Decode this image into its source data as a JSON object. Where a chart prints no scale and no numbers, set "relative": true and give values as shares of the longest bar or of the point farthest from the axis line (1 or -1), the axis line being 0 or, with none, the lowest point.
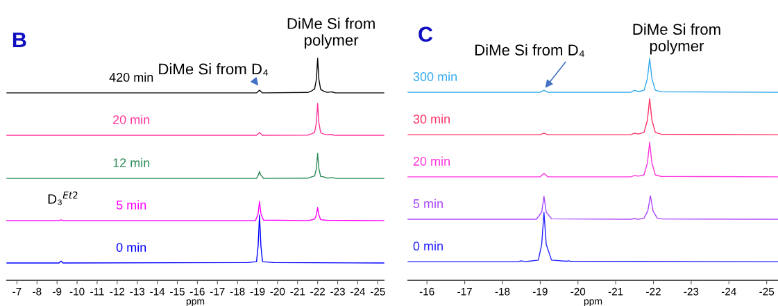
{
  "chart_data": [
    {
      "type": "line",
      "relative": true,
      "title": "B",
      "xlim": [
        -6.5,
        -25.3
      ],
      "xticks": [
        -7,
        -8,
        -9,
        -10,
        -11,
        -12,
        -13,
        -14,
        -15,
        -16,
        -17,
        -18,
        -19,
        -20,
        -21,
        -22,
        -23,
        -24,
        -25
      ],
      "xlabel": "ppm",
      "tick_labels": "x",
      "grid": false,
      "annotations": [
        {
          "text": "DiMe Si from D₄",
          "x": -19.1,
          "y": 0.87
        },
        {
          "text": "DiMe Si from\npolymer",
          "x": -22.0,
          "y": 1.0
        },
        {
          "text": "D₃$^{Et2}$",
          "x": -9.2,
          "y": 0.28
        }
      ],
      "series": [
        {
          "name": "420 min",
          "color": "#000000",
          "x": [
            -6.5,
            -18.95,
            -19.1,
            -19.25,
            -21.5,
            -21.7,
            -21.85,
            -21.94,
            -22.0,
            -22.06,
            -22.15,
            -22.3,
            -22.45,
            -22.7,
            -22.8,
            -22.9,
            -25.3
          ],
          "values": [
            0.844,
            0.844,
            0.856,
            0.844,
            0.846,
            0.853,
            0.863,
            0.906,
            1.0,
            0.906,
            0.86,
            0.852,
            0.847,
            0.849,
            0.846,
            0.844,
            0.844
          ]
        },
        {
          "name": "20 min",
          "color": "#ff3399",
          "x": [
            -6.5,
            -18.95,
            -19.1,
            -19.25,
            -21.5,
            -21.7,
            -21.85,
            -21.94,
            -22.0,
            -22.06,
            -22.15,
            -22.3,
            -22.45,
            -22.7,
            -22.8,
            -22.9,
            -25.3
          ],
          "values": [
            0.653,
            0.653,
            0.666,
            0.653,
            0.654,
            0.66,
            0.667,
            0.711,
            0.797,
            0.711,
            0.665,
            0.659,
            0.656,
            0.657,
            0.654,
            0.653,
            0.653
          ]
        },
        {
          "name": "12 min",
          "color": "#2e8b57",
          "x": [
            -6.5,
            -18.95,
            -19.05,
            -19.1,
            -19.15,
            -19.3,
            -21.5,
            -21.7,
            -21.85,
            -21.94,
            -22.0,
            -22.06,
            -22.15,
            -22.3,
            -22.45,
            -22.8,
            -22.9,
            -25.3
          ],
          "values": [
            0.459,
            0.459,
            0.476,
            0.491,
            0.476,
            0.459,
            0.46,
            0.466,
            0.47,
            0.504,
            0.572,
            0.504,
            0.468,
            0.466,
            0.461,
            0.462,
            0.459,
            0.459
          ]
        },
        {
          "name": "5 min",
          "color": "#ff00ff",
          "x": [
            -6.5,
            -9.1,
            -9.2,
            -9.3,
            -18.9,
            -19.03,
            -19.1,
            -19.17,
            -19.3,
            -21.5,
            -21.7,
            -21.85,
            -21.94,
            -22.0,
            -22.06,
            -22.15,
            -22.3,
            -22.5,
            -25.3
          ],
          "values": [
            0.269,
            0.269,
            0.272,
            0.269,
            0.269,
            0.3,
            0.356,
            0.3,
            0.271,
            0.269,
            0.272,
            0.276,
            0.295,
            0.328,
            0.295,
            0.273,
            0.272,
            0.27,
            0.269
          ]
        },
        {
          "name": "0 min",
          "color": "#0000ff",
          "x": [
            -6.5,
            -9.1,
            -9.2,
            -9.3,
            -18.5,
            -18.95,
            -19.03,
            -19.1,
            -19.17,
            -19.25,
            -19.8,
            -25.3
          ],
          "values": [
            0.078,
            0.078,
            0.087,
            0.078,
            0.08,
            0.084,
            0.154,
            0.294,
            0.154,
            0.084,
            0.08,
            0.078
          ]
        }
      ]
    },
    {
      "type": "line",
      "relative": true,
      "title": "C",
      "xlim": [
        -15.5,
        -25.3
      ],
      "xticks": [
        -16,
        -17,
        -18,
        -19,
        -20,
        -21,
        -22,
        -23,
        -24,
        -25
      ],
      "xlabel": "ppm",
      "tick_labels": "x",
      "grid": false,
      "annotations": [
        {
          "text": "DiMe Si from D₄",
          "x": -19.1,
          "y": 0.86
        },
        {
          "text": "DiMe Si from\npolymer",
          "x": -21.9,
          "y": 1.0
        }
      ],
      "series": [
        {
          "name": "300 min",
          "color": "#33aaee",
          "x": [
            -15.5,
            -19.0,
            -19.1,
            -19.2,
            -21.4,
            -21.5,
            -21.6,
            -21.75,
            -21.84,
            -21.9,
            -21.96,
            -22.05,
            -22.2,
            -25.3
          ],
          "values": [
            0.847,
            0.847,
            0.856,
            0.847,
            0.847,
            0.856,
            0.85,
            0.856,
            0.908,
            1.0,
            0.908,
            0.856,
            0.849,
            0.847
          ]
        },
        {
          "name": "30 min",
          "color": "#ff3366",
          "x": [
            -15.5,
            -19.0,
            -19.1,
            -19.2,
            -21.4,
            -21.5,
            -21.6,
            -21.75,
            -21.84,
            -21.9,
            -21.96,
            -22.05,
            -22.2,
            -25.3
          ],
          "values": [
            0.656,
            0.656,
            0.663,
            0.656,
            0.656,
            0.663,
            0.659,
            0.666,
            0.721,
            0.819,
            0.721,
            0.666,
            0.658,
            0.656
          ]
        },
        {
          "name": "20 min",
          "color": "#ff33dd",
          "x": [
            -15.5,
            -19.0,
            -19.1,
            -19.2,
            -21.4,
            -21.5,
            -21.6,
            -21.75,
            -21.84,
            -21.9,
            -21.96,
            -22.05,
            -22.2,
            -25.3
          ],
          "values": [
            0.466,
            0.466,
            0.482,
            0.466,
            0.466,
            0.472,
            0.469,
            0.475,
            0.528,
            0.622,
            0.528,
            0.475,
            0.468,
            0.466
          ]
        },
        {
          "name": "5 min",
          "color": "#aa44ff",
          "x": [
            -15.5,
            -18.9,
            -19.04,
            -19.1,
            -19.16,
            -19.3,
            -21.4,
            -21.5,
            -21.6,
            -21.75,
            -21.85,
            -21.92,
            -21.99,
            -22.1,
            -22.25,
            -25.3
          ],
          "values": [
            0.275,
            0.275,
            0.307,
            0.378,
            0.307,
            0.277,
            0.275,
            0.278,
            0.275,
            0.28,
            0.312,
            0.381,
            0.312,
            0.28,
            0.276,
            0.275
          ]
        },
        {
          "name": "0 min",
          "color": "#2222ff",
          "x": [
            -15.5,
            -18.4,
            -18.5,
            -18.6,
            -18.95,
            -19.04,
            -19.1,
            -19.16,
            -19.3,
            -19.7,
            -19.75,
            -19.8,
            -25.3
          ],
          "values": [
            0.084,
            0.084,
            0.088,
            0.084,
            0.091,
            0.162,
            0.306,
            0.162,
            0.091,
            0.086,
            0.088,
            0.086,
            0.084
          ]
        }
      ]
    }
  ]
}
